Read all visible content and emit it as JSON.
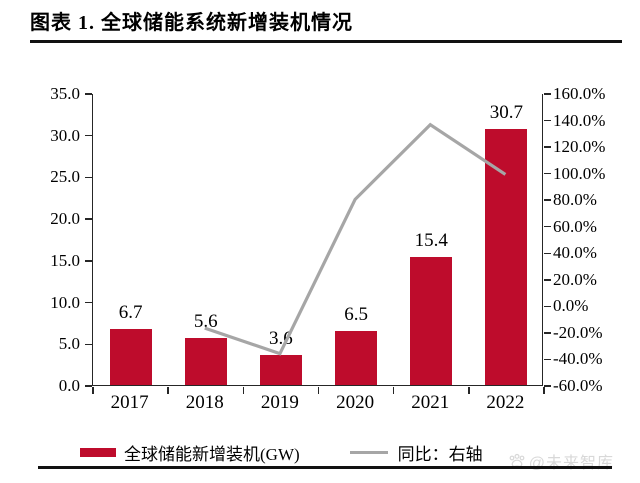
{
  "header": {
    "title": "图表 1. 全球储能系统新增装机情况"
  },
  "colors": {
    "bar": "#BE0C2C",
    "line": "#A6A6A6",
    "axis": "#262626",
    "text": "#000000",
    "watermark": "#D8D8D8"
  },
  "chart_data": {
    "type": "bar",
    "subtype": "bar+line dual-axis",
    "title": "全球储能系统新增装机情况",
    "categories": [
      "2017",
      "2018",
      "2019",
      "2020",
      "2021",
      "2022"
    ],
    "series": [
      {
        "name": "全球储能新增装机(GW)",
        "type": "bar",
        "axis": "left",
        "color": "#BE0C2C",
        "values": [
          6.7,
          5.6,
          3.6,
          6.5,
          15.4,
          30.7
        ],
        "data_labels": [
          "6.7",
          "5.6",
          "3.6",
          "6.5",
          "15.4",
          "30.7"
        ]
      },
      {
        "name": "同比：右轴",
        "type": "line",
        "axis": "right",
        "color": "#A6A6A6",
        "values": [
          null,
          -16.4,
          -35.7,
          80.6,
          136.9,
          99.4
        ]
      }
    ],
    "left_axis": {
      "min": 0,
      "max": 35,
      "step": 5,
      "tick_labels": [
        "35.0",
        "30.0",
        "25.0",
        "20.0",
        "15.0",
        "10.0",
        "5.0",
        "0.0"
      ]
    },
    "right_axis": {
      "min": -60,
      "max": 160,
      "step": 20,
      "tick_labels": [
        "160.0%",
        "140.0%",
        "120.0%",
        "100.0%",
        "80.0%",
        "60.0%",
        "40.0%",
        "20.0%",
        "0.0%",
        "-20.0%",
        "-40.0%",
        "-60.0%"
      ]
    },
    "grid": false,
    "legend_position": "bottom"
  },
  "legend": {
    "bar_label": "全球储能新增装机(GW)",
    "line_label": "同比：右轴"
  },
  "watermark": {
    "text": "@未来智库"
  }
}
